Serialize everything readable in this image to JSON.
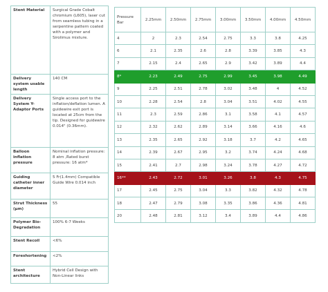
{
  "specs": {
    "rows": [
      [
        "Stent Material",
        "Surgical Grade Cobalt chromium (L605), laser cut from seamless tubing in a serpentine pattern coated with a polymer and Sirolimus mixture."
      ],
      [
        "Delivery system usable length",
        "140 CM"
      ],
      [
        "Delivery System Y-Adaptor Ports",
        "Single access port to the inflation/deflation lumen. A guidewire exit port is located at 25cm from the tip. Designed for guidewire 0.014\" (0.36mm)."
      ],
      [
        "Balloon inflation pressure",
        "Nominal inflation pressure: 8 atm ,Rated burst pressure: 16 atm*"
      ],
      [
        "Guiding catheter inner diameter",
        "5 Fr(1.4mm) Compatible Guide Wire 0.014 inch"
      ],
      [
        "Strut Thickness (µm)",
        "55"
      ],
      [
        "Polymer Bio-Degradation",
        "100% 6-7 Weeks"
      ],
      [
        "Stent Recoil",
        "<6%"
      ],
      [
        "Foreshortening",
        "<2%"
      ],
      [
        "Stent architecture",
        "Hybrid Cell Design with Non-Linear links"
      ]
    ]
  },
  "compliance": {
    "header": [
      "Pressure Bar",
      "2.25mm",
      "2.50mm",
      "2.75mm",
      "3.00mm",
      "3.50mm",
      "4.00mm",
      "4.50mm"
    ],
    "rows": [
      [
        "4",
        "2",
        "2.3",
        "2.54",
        "2.75",
        "3.3",
        "3.8",
        "4.25"
      ],
      [
        "6",
        "2.1",
        "2.35",
        "2.6",
        "2.8",
        "3.39",
        "3.85",
        "4.3"
      ],
      [
        "7",
        "2.15",
        "2.4",
        "2.65",
        "2.9",
        "3.42",
        "3.89",
        "4.4"
      ],
      [
        "8*",
        "2.23",
        "2.49",
        "2.75",
        "2.99",
        "3.45",
        "3.98",
        "4.49"
      ],
      [
        "9",
        "2.25",
        "2.51",
        "2.78",
        "3.02",
        "3.48",
        "4",
        "4.52"
      ],
      [
        "10",
        "2.28",
        "2.54",
        "2.8",
        "3.04",
        "3.51",
        "4.02",
        "4.55"
      ],
      [
        "11",
        "2.3",
        "2.59",
        "2.86",
        "3.1",
        "3.58",
        "4.1",
        "4.57"
      ],
      [
        "12",
        "2.32",
        "2.62",
        "2.89",
        "3.14",
        "3.66",
        "4.16",
        "4.6"
      ],
      [
        "13",
        "2.35",
        "2.65",
        "2.92",
        "3.18",
        "3.7",
        "4.2",
        "4.65"
      ],
      [
        "14",
        "2.39",
        "2.67",
        "2.95",
        "3.2",
        "3.74",
        "4.24",
        "4.68"
      ],
      [
        "15",
        "2.41",
        "2.7",
        "2.98",
        "3.24",
        "3.78",
        "4.27",
        "4.72"
      ],
      [
        "16**",
        "2.43",
        "2.72",
        "3.01",
        "3.26",
        "3.8",
        "4.3",
        "4.75"
      ],
      [
        "17",
        "2.45",
        "2.75",
        "3.04",
        "3.3",
        "3.82",
        "4.32",
        "4.78"
      ],
      [
        "18",
        "2.47",
        "2.79",
        "3.08",
        "3.35",
        "3.86",
        "4.36",
        "4.81"
      ],
      [
        "20",
        "2.48",
        "2.81",
        "3.12",
        "3.4",
        "3.89",
        "4.4",
        "4.86"
      ]
    ]
  }
}
